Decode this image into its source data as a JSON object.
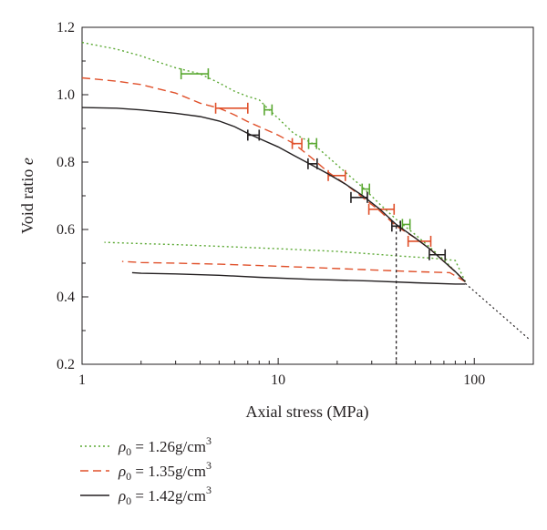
{
  "chart_data": {
    "type": "line",
    "xscale": "log",
    "xlim": [
      1,
      200
    ],
    "ylim": [
      0.2,
      1.2
    ],
    "xlabel": "Axial stress (MPa)",
    "ylabel_main": "Void ratio ",
    "ylabel_var": "e",
    "xticks": [
      {
        "value": 1,
        "label": "1"
      },
      {
        "value": 10,
        "label": "10"
      },
      {
        "value": 100,
        "label": "100"
      }
    ],
    "yticks": [
      {
        "value": 0.2,
        "label": "0.2"
      },
      {
        "value": 0.4,
        "label": "0.4"
      },
      {
        "value": 0.6,
        "label": "0.6"
      },
      {
        "value": 0.8,
        "label": "0.8"
      },
      {
        "value": 1.0,
        "label": "1.0"
      },
      {
        "value": 1.2,
        "label": "1.2"
      }
    ],
    "grid": false,
    "legend_position": "bottom-left, below plot",
    "series": [
      {
        "key": "rho126",
        "density_value": "1.26",
        "style": "dotted",
        "color": "#5aa832",
        "loading": [
          [
            1,
            1.155
          ],
          [
            1.5,
            1.135
          ],
          [
            2,
            1.115
          ],
          [
            2.5,
            1.095
          ],
          [
            3,
            1.08
          ],
          [
            4,
            1.062
          ],
          [
            5,
            1.035
          ],
          [
            6,
            1.01
          ],
          [
            7,
            0.995
          ],
          [
            8,
            0.985
          ],
          [
            9,
            0.955
          ],
          [
            10,
            0.93
          ],
          [
            12,
            0.885
          ],
          [
            15,
            0.855
          ],
          [
            18,
            0.815
          ],
          [
            22,
            0.77
          ],
          [
            27,
            0.725
          ],
          [
            33,
            0.675
          ],
          [
            40,
            0.63
          ],
          [
            50,
            0.585
          ],
          [
            60,
            0.545
          ],
          [
            70,
            0.51
          ],
          [
            80,
            0.475
          ],
          [
            90,
            0.445
          ]
        ],
        "unloading": [
          [
            90,
            0.445
          ],
          [
            80,
            0.508
          ],
          [
            60,
            0.515
          ],
          [
            40,
            0.522
          ],
          [
            20,
            0.535
          ],
          [
            10,
            0.543
          ],
          [
            5,
            0.55
          ],
          [
            3,
            0.555
          ],
          [
            2,
            0.558
          ],
          [
            1.3,
            0.562
          ]
        ],
        "error_bars": [
          {
            "x": 3.8,
            "lo": 3.2,
            "hi": 4.4,
            "y": 1.062
          },
          {
            "x": 8.9,
            "lo": 8.5,
            "hi": 9.3,
            "y": 0.955
          },
          {
            "x": 15,
            "lo": 14.3,
            "hi": 15.7,
            "y": 0.855
          },
          {
            "x": 28,
            "lo": 26.8,
            "hi": 29.2,
            "y": 0.72
          },
          {
            "x": 45,
            "lo": 43,
            "hi": 47,
            "y": 0.615
          }
        ]
      },
      {
        "key": "rho135",
        "density_value": "1.35",
        "style": "dashed",
        "color": "#e0502a",
        "loading": [
          [
            1,
            1.05
          ],
          [
            1.5,
            1.04
          ],
          [
            2,
            1.03
          ],
          [
            3,
            1.005
          ],
          [
            4,
            0.975
          ],
          [
            5,
            0.96
          ],
          [
            6,
            0.94
          ],
          [
            7,
            0.92
          ],
          [
            8,
            0.905
          ],
          [
            10,
            0.88
          ],
          [
            12,
            0.855
          ],
          [
            15,
            0.81
          ],
          [
            18,
            0.77
          ],
          [
            22,
            0.735
          ],
          [
            27,
            0.695
          ],
          [
            33,
            0.655
          ],
          [
            40,
            0.61
          ],
          [
            50,
            0.575
          ],
          [
            60,
            0.54
          ],
          [
            70,
            0.505
          ],
          [
            80,
            0.475
          ],
          [
            90,
            0.445
          ]
        ],
        "unloading": [
          [
            90,
            0.445
          ],
          [
            75,
            0.472
          ],
          [
            50,
            0.475
          ],
          [
            30,
            0.48
          ],
          [
            15,
            0.487
          ],
          [
            8,
            0.493
          ],
          [
            5,
            0.497
          ],
          [
            3,
            0.5
          ],
          [
            2,
            0.502
          ],
          [
            1.6,
            0.505
          ]
        ],
        "error_bars": [
          {
            "x": 5.8,
            "lo": 4.8,
            "hi": 7.0,
            "y": 0.96
          },
          {
            "x": 12.5,
            "lo": 11.8,
            "hi": 13.2,
            "y": 0.855
          },
          {
            "x": 20,
            "lo": 18,
            "hi": 22,
            "y": 0.76
          },
          {
            "x": 34,
            "lo": 29,
            "hi": 39,
            "y": 0.66
          },
          {
            "x": 53,
            "lo": 46,
            "hi": 60,
            "y": 0.565
          }
        ]
      },
      {
        "key": "rho142",
        "density_value": "1.42",
        "style": "solid",
        "color": "#231f20",
        "loading": [
          [
            1,
            0.962
          ],
          [
            1.5,
            0.96
          ],
          [
            2,
            0.955
          ],
          [
            3,
            0.945
          ],
          [
            4,
            0.935
          ],
          [
            5,
            0.922
          ],
          [
            6,
            0.905
          ],
          [
            7,
            0.885
          ],
          [
            8,
            0.87
          ],
          [
            10,
            0.845
          ],
          [
            12,
            0.82
          ],
          [
            15,
            0.79
          ],
          [
            18,
            0.765
          ],
          [
            22,
            0.735
          ],
          [
            27,
            0.7
          ],
          [
            33,
            0.66
          ],
          [
            40,
            0.615
          ],
          [
            50,
            0.575
          ],
          [
            60,
            0.54
          ],
          [
            70,
            0.505
          ],
          [
            80,
            0.475
          ],
          [
            90,
            0.445
          ]
        ],
        "unloading": [
          [
            90,
            0.438
          ],
          [
            80,
            0.438
          ],
          [
            50,
            0.442
          ],
          [
            30,
            0.447
          ],
          [
            15,
            0.452
          ],
          [
            8,
            0.458
          ],
          [
            5,
            0.464
          ],
          [
            3,
            0.468
          ],
          [
            2,
            0.47
          ],
          [
            1.8,
            0.472
          ]
        ],
        "error_bars": [
          {
            "x": 7.5,
            "lo": 7.0,
            "hi": 8.0,
            "y": 0.88
          },
          {
            "x": 15,
            "lo": 14.2,
            "hi": 15.8,
            "y": 0.795
          },
          {
            "x": 26,
            "lo": 23.5,
            "hi": 28.5,
            "y": 0.695
          },
          {
            "x": 40,
            "lo": 38,
            "hi": 42,
            "y": 0.61
          },
          {
            "x": 65,
            "lo": 59,
            "hi": 71,
            "y": 0.525
          }
        ]
      }
    ],
    "extrapolation_line": [
      [
        90,
        0.44
      ],
      [
        190,
        0.275
      ]
    ],
    "vertical_marker_x": 40,
    "legend": [
      {
        "series": "rho126",
        "lhs": "ρ",
        "sub": "0",
        "eq": " = ",
        "value": "1.26",
        "unit": "g/cm",
        "sup": "3"
      },
      {
        "series": "rho135",
        "lhs": "ρ",
        "sub": "0",
        "eq": " = ",
        "value": "1.35",
        "unit": "g/cm",
        "sup": "3"
      },
      {
        "series": "rho142",
        "lhs": "ρ",
        "sub": "0",
        "eq": " = ",
        "value": "1.42",
        "unit": "g/cm",
        "sup": "3"
      }
    ]
  }
}
